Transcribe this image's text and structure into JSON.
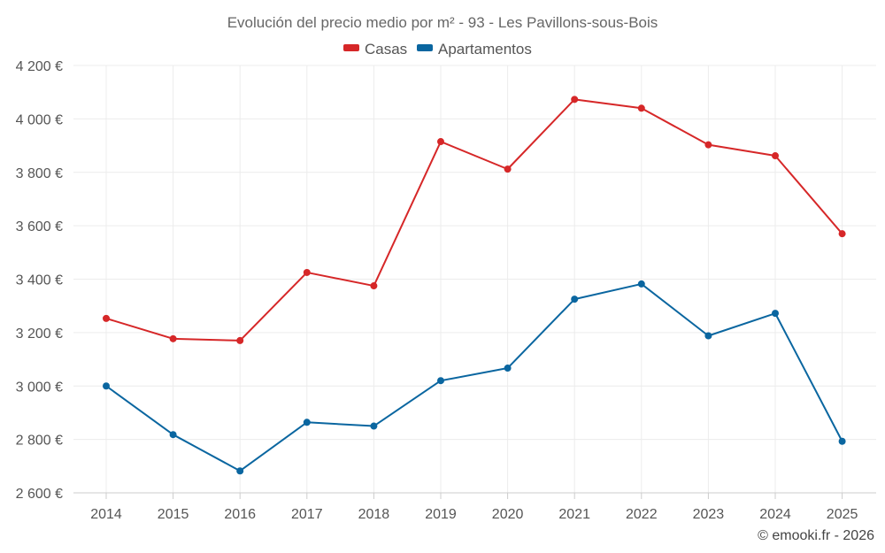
{
  "chart_data": {
    "type": "line",
    "title": "Evolución del precio medio por m² - 93 - Les Pavillons-sous-Bois",
    "categories": [
      "2014",
      "2015",
      "2016",
      "2017",
      "2018",
      "2019",
      "2020",
      "2021",
      "2022",
      "2023",
      "2024",
      "2025"
    ],
    "series": [
      {
        "name": "Casas",
        "color": "#d62728",
        "values": [
          3253,
          3177,
          3170,
          3425,
          3375,
          3915,
          3812,
          4073,
          4040,
          3903,
          3862,
          3570
        ]
      },
      {
        "name": "Apartamentos",
        "color": "#0a66a0",
        "values": [
          3000,
          2818,
          2682,
          2864,
          2850,
          3020,
          3067,
          3325,
          3382,
          3188,
          3272,
          2793
        ]
      }
    ],
    "ylim": [
      2600,
      4200
    ],
    "yticks": [
      2600,
      2800,
      3000,
      3200,
      3400,
      3600,
      3800,
      4000,
      4200
    ],
    "ytick_labels": [
      "2 600 €",
      "2 800 €",
      "3 000 €",
      "3 200 €",
      "3 400 €",
      "3 600 €",
      "3 800 €",
      "4 000 €",
      "4 200 €"
    ],
    "xlabel": "",
    "ylabel": "",
    "legend_position": "top-center",
    "grid": true
  },
  "credit": "© emooki.fr - 2026"
}
